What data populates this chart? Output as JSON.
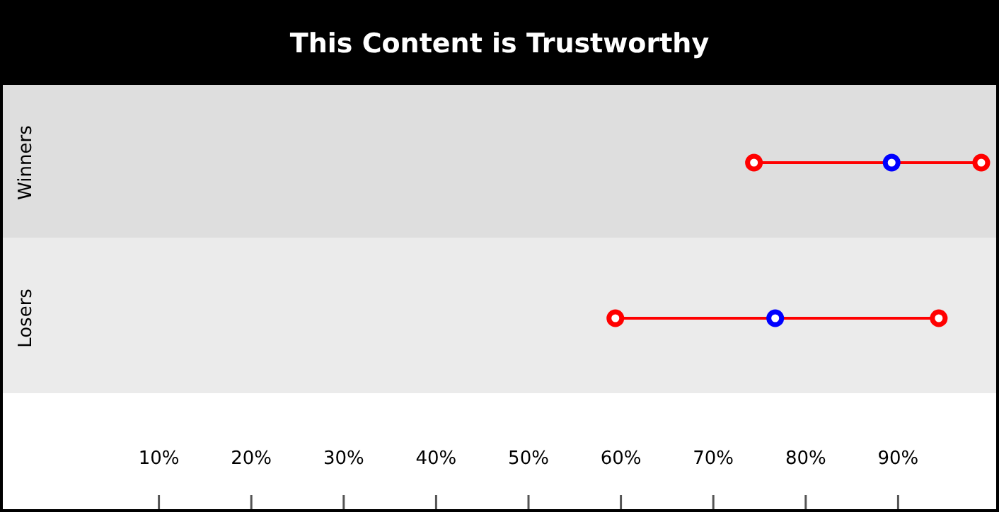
{
  "chart_data": {
    "type": "scatter",
    "title": "This Content is Trustworthy",
    "categories": [
      "Winners",
      "Losers"
    ],
    "orientation": "horizontal",
    "marker": "circle",
    "xlim": [
      0,
      100
    ],
    "xticks": [
      {
        "value": 10,
        "label": "10%"
      },
      {
        "value": 20,
        "label": "20%"
      },
      {
        "value": 30,
        "label": "30%"
      },
      {
        "value": 40,
        "label": "40%"
      },
      {
        "value": 50,
        "label": "50%"
      },
      {
        "value": 60,
        "label": "60%"
      },
      {
        "value": 70,
        "label": "70%"
      },
      {
        "value": 80,
        "label": "80%"
      },
      {
        "value": 90,
        "label": "90%"
      }
    ],
    "series": [
      {
        "type": "bar",
        "color": "#ff0000",
        "base": [
          74.4,
          59.4
        ],
        "values": [
          24.6,
          35.0
        ]
      },
      {
        "color": "#ff0000",
        "values": [
          74.4,
          59.4
        ]
      },
      {
        "color": "#0000ff",
        "values": [
          89.3,
          76.7
        ]
      },
      {
        "color": "#ff0000",
        "values": [
          99.0,
          94.4
        ]
      }
    ]
  }
}
